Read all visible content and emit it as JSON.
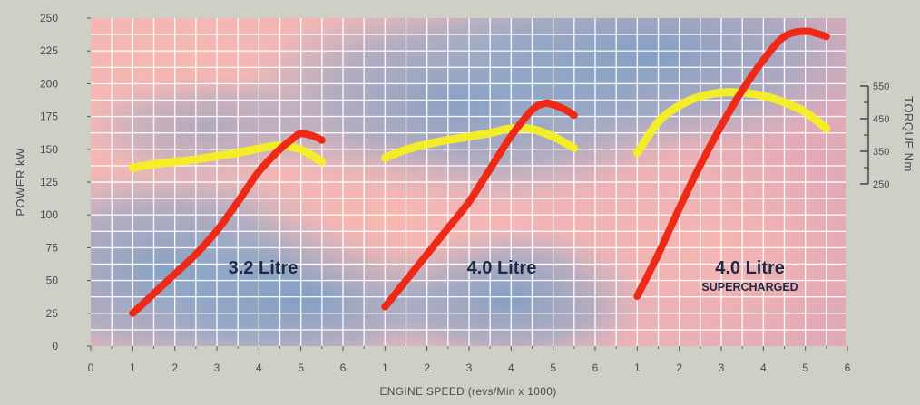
{
  "chart_data": {
    "type": "line",
    "xlabel": "ENGINE SPEED (revs/Min x 1000)",
    "ylabel": "POWER kW",
    "y2label": "TORQUE Nm",
    "ylim": [
      0,
      250
    ],
    "yticks": [
      0,
      25,
      50,
      75,
      100,
      125,
      150,
      175,
      200,
      225,
      250
    ],
    "y2ticks": [
      250,
      350,
      450,
      550
    ],
    "y2lim": [
      250,
      550
    ],
    "grid": true,
    "panels": [
      {
        "label": "3.2 Litre",
        "sublabel": "",
        "xticks": [
          0,
          1,
          2,
          3,
          4,
          5,
          6
        ],
        "xlim": [
          0,
          6
        ],
        "power": {
          "color": "#ee2a17",
          "x": [
            1.0,
            1.5,
            2.0,
            2.5,
            3.0,
            3.5,
            4.0,
            4.5,
            4.8,
            5.0,
            5.3,
            5.5
          ],
          "y": [
            25,
            40,
            55,
            70,
            88,
            110,
            133,
            150,
            158,
            162,
            160,
            157
          ]
        },
        "torque": {
          "color": "#f5ef22",
          "x": [
            1.0,
            1.5,
            2.0,
            2.5,
            3.0,
            3.5,
            4.0,
            4.5,
            5.0,
            5.5
          ],
          "y": [
            300,
            310,
            318,
            325,
            335,
            345,
            358,
            368,
            355,
            318
          ]
        }
      },
      {
        "label": "4.0 Litre",
        "sublabel": "",
        "xticks": [
          1,
          2,
          3,
          4,
          5,
          6
        ],
        "xlim": [
          0,
          6
        ],
        "power": {
          "color": "#ee2a17",
          "x": [
            1.0,
            1.5,
            2.0,
            2.5,
            3.0,
            3.5,
            4.0,
            4.5,
            4.8,
            5.0,
            5.3,
            5.5
          ],
          "y": [
            30,
            50,
            70,
            90,
            110,
            135,
            160,
            180,
            185,
            184,
            180,
            176
          ]
        },
        "torque": {
          "color": "#f5ef22",
          "x": [
            1.0,
            1.5,
            2.0,
            2.5,
            3.0,
            3.5,
            4.0,
            4.5,
            5.0,
            5.5
          ],
          "y": [
            330,
            355,
            372,
            385,
            395,
            406,
            420,
            418,
            395,
            360
          ]
        }
      },
      {
        "label": "4.0 Litre",
        "sublabel": "SUPERCHARGED",
        "xticks": [
          1,
          2,
          3,
          4,
          5,
          6
        ],
        "xlim": [
          0,
          6
        ],
        "power": {
          "color": "#ee2a17",
          "x": [
            1.0,
            1.5,
            2.0,
            2.5,
            3.0,
            3.5,
            4.0,
            4.5,
            5.0,
            5.3,
            5.5
          ],
          "y": [
            38,
            70,
            105,
            138,
            168,
            195,
            218,
            236,
            240,
            238,
            236
          ]
        },
        "torque": {
          "color": "#f5ef22",
          "x": [
            1.0,
            1.5,
            2.0,
            2.5,
            3.0,
            3.5,
            4.0,
            4.5,
            5.0,
            5.5
          ],
          "y": [
            345,
            440,
            490,
            518,
            530,
            530,
            520,
            500,
            470,
            420
          ]
        }
      }
    ]
  }
}
